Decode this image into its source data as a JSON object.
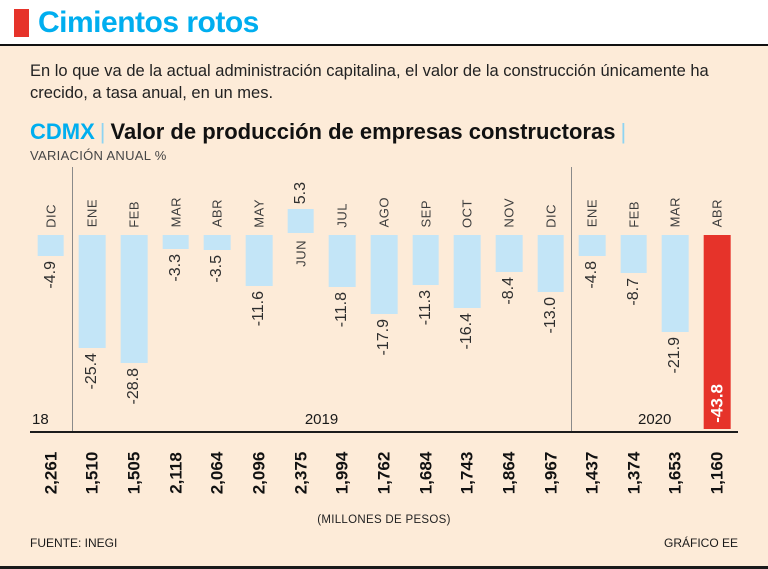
{
  "page": {
    "background": "#fdebd8",
    "accent_cyan": "#00aeef",
    "accent_red": "#e6332a"
  },
  "header": {
    "title": "Cimientos rotos",
    "description": "En lo que va de la actual administración capitalina, el valor de la construcción únicamente ha crecido, a tasa anual, en un mes."
  },
  "chart_header": {
    "tag": "CDMX",
    "separator": "|",
    "title": "Valor de producción de empresas constructoras",
    "unit_label": "VARIACIÓN ANUAL %"
  },
  "chart_data": {
    "type": "bar",
    "title": "CDMX | Valor de producción de empresas constructoras",
    "ylabel": "VARIACIÓN ANUAL %",
    "categories": [
      "DIC",
      "ENE",
      "FEB",
      "MAR",
      "ABR",
      "MAY",
      "JUN",
      "JUL",
      "AGO",
      "SEP",
      "OCT",
      "NOV",
      "DIC",
      "ENE",
      "FEB",
      "MAR",
      "ABR"
    ],
    "values": [
      -4.9,
      -25.4,
      -28.8,
      -3.3,
      -3.5,
      -11.6,
      5.3,
      -11.8,
      -17.9,
      -11.3,
      -16.4,
      -8.4,
      -13.0,
      -4.8,
      -8.7,
      -21.9,
      -43.8
    ],
    "value_labels": [
      "-4.9",
      "-25.4",
      "-28.8",
      "-3.3",
      "-3.5",
      "-11.6",
      "5.3",
      "-11.8",
      "-17.9",
      "-11.3",
      "-16.4",
      "-8.4",
      "-13.0",
      "-4.8",
      "-8.7",
      "-21.9",
      "-43.8"
    ],
    "highlight_index": 16,
    "bar_color": "#c3e5f7",
    "highlight_color": "#e6332a",
    "ylim": [
      -45,
      8
    ],
    "grid": false,
    "years": [
      {
        "label": "18",
        "cols": 1
      },
      {
        "label": "2019",
        "cols": 12
      },
      {
        "label": "2020",
        "cols": 4
      }
    ],
    "production_values": [
      "2,261",
      "1,510",
      "1,505",
      "2,118",
      "2,064",
      "2,096",
      "2,375",
      "1,994",
      "1,762",
      "1,684",
      "1,743",
      "1,864",
      "1,967",
      "1,437",
      "1,374",
      "1,653",
      "1,160"
    ],
    "production_unit": "(MILLONES DE PESOS)"
  },
  "footer": {
    "source": "FUENTE: INEGI",
    "credit": "GRÁFICO EE"
  }
}
